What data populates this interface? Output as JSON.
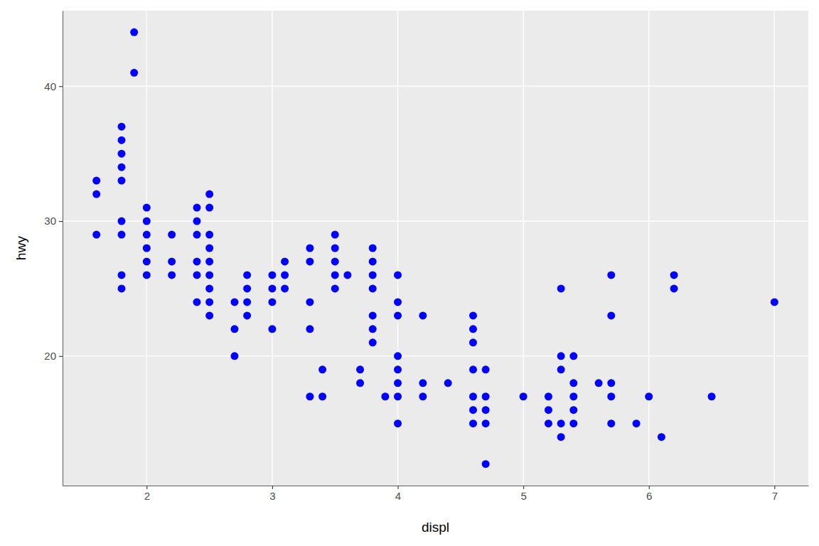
{
  "chart_data": {
    "type": "scatter",
    "x_label": "displ",
    "y_label": "hwy",
    "color": "#0000ff",
    "grid": true,
    "xlim": [
      1.33,
      7.27
    ],
    "ylim": [
      10.4,
      45.6
    ],
    "xticks": [
      2,
      3,
      4,
      5,
      6,
      7
    ],
    "yticks": [
      20,
      30,
      40
    ],
    "x": [
      1.6,
      1.6,
      1.6,
      1.8,
      1.8,
      1.8,
      1.8,
      1.8,
      1.8,
      1.8,
      1.8,
      1.8,
      1.9,
      1.9,
      2.0,
      2.0,
      2.0,
      2.0,
      2.0,
      2.0,
      2.2,
      2.2,
      2.2,
      2.4,
      2.4,
      2.4,
      2.4,
      2.4,
      2.4,
      2.5,
      2.5,
      2.5,
      2.5,
      2.5,
      2.5,
      2.5,
      2.5,
      2.5,
      2.7,
      2.7,
      2.7,
      2.8,
      2.8,
      2.8,
      2.8,
      3.0,
      3.0,
      3.0,
      3.0,
      3.1,
      3.1,
      3.1,
      3.3,
      3.3,
      3.3,
      3.3,
      3.3,
      3.4,
      3.4,
      3.5,
      3.5,
      3.5,
      3.5,
      3.5,
      3.6,
      3.7,
      3.7,
      3.8,
      3.8,
      3.8,
      3.8,
      3.8,
      3.8,
      3.8,
      3.9,
      4.0,
      4.0,
      4.0,
      4.0,
      4.0,
      4.0,
      4.0,
      4.0,
      4.2,
      4.2,
      4.2,
      4.4,
      4.6,
      4.6,
      4.6,
      4.6,
      4.6,
      4.6,
      4.6,
      4.7,
      4.7,
      4.7,
      4.7,
      4.7,
      5.0,
      5.2,
      5.2,
      5.2,
      5.3,
      5.3,
      5.3,
      5.3,
      5.3,
      5.4,
      5.4,
      5.4,
      5.4,
      5.4,
      5.6,
      5.7,
      5.7,
      5.7,
      5.7,
      5.7,
      5.9,
      6.0,
      6.1,
      6.2,
      6.2,
      6.5,
      7.0
    ],
    "values": [
      33,
      32,
      29,
      37,
      36,
      35,
      34,
      33,
      30,
      29,
      26,
      25,
      44,
      41,
      31,
      30,
      29,
      28,
      27,
      26,
      29,
      27,
      26,
      31,
      30,
      29,
      27,
      26,
      24,
      32,
      31,
      29,
      28,
      27,
      26,
      25,
      24,
      23,
      24,
      22,
      20,
      26,
      25,
      24,
      23,
      26,
      25,
      24,
      22,
      27,
      26,
      25,
      28,
      27,
      24,
      22,
      17,
      19,
      17,
      29,
      28,
      27,
      26,
      25,
      26,
      19,
      18,
      28,
      27,
      26,
      25,
      23,
      22,
      21,
      17,
      26,
      24,
      23,
      20,
      19,
      18,
      17,
      15,
      23,
      18,
      17,
      18,
      23,
      22,
      21,
      19,
      17,
      16,
      15,
      19,
      17,
      16,
      15,
      12,
      17,
      17,
      16,
      15,
      25,
      20,
      19,
      15,
      14,
      20,
      18,
      17,
      16,
      15,
      18,
      26,
      23,
      18,
      17,
      15,
      15,
      17,
      14,
      26,
      25,
      17,
      24
    ]
  }
}
